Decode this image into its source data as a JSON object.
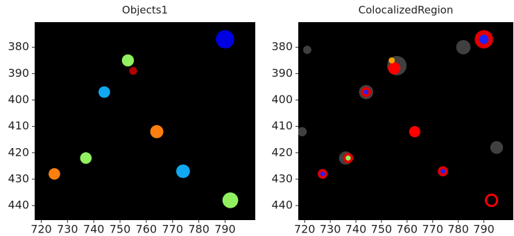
{
  "chart_data": [
    {
      "type": "image",
      "title": "Objects1",
      "background": "#000000",
      "xlim": [
        717.5,
        801.5
      ],
      "ylim": [
        445.5,
        370.5
      ],
      "xticks": [
        720,
        730,
        740,
        750,
        760,
        770,
        780,
        790
      ],
      "yticks": [
        380,
        390,
        400,
        410,
        420,
        430,
        440
      ],
      "objects": [
        {
          "x": 790,
          "y": 377,
          "r": 3.5,
          "fill": "#0000e0",
          "stroke": "none"
        },
        {
          "x": 753,
          "y": 385,
          "r": 2.3,
          "fill": "#90f060",
          "stroke": "none"
        },
        {
          "x": 755,
          "y": 389,
          "r": 1.5,
          "fill": "#b00000",
          "stroke": "none"
        },
        {
          "x": 744,
          "y": 397,
          "r": 2.2,
          "fill": "#10a8f0",
          "stroke": "none"
        },
        {
          "x": 764,
          "y": 412,
          "r": 2.5,
          "fill": "#ff7f0e",
          "stroke": "none"
        },
        {
          "x": 737,
          "y": 422,
          "r": 2.2,
          "fill": "#90f060",
          "stroke": "none"
        },
        {
          "x": 725,
          "y": 428,
          "r": 2.2,
          "fill": "#ff7f0e",
          "stroke": "none"
        },
        {
          "x": 774,
          "y": 427,
          "r": 2.6,
          "fill": "#10a8f0",
          "stroke": "none"
        },
        {
          "x": 792,
          "y": 438,
          "r": 3,
          "fill": "#90f060",
          "stroke": "none"
        }
      ]
    },
    {
      "type": "image",
      "title": "ColocalizedRegion",
      "background": "#000000",
      "xlim": [
        717.5,
        801.5
      ],
      "ylim": [
        445.5,
        370.5
      ],
      "xticks": [
        720,
        730,
        740,
        750,
        760,
        770,
        780,
        790
      ],
      "yticks": [
        380,
        390,
        400,
        410,
        420,
        430,
        440
      ],
      "objects": [
        {
          "x": 782,
          "y": 380,
          "r": 2.8,
          "fill": "#404040",
          "stroke": "none"
        },
        {
          "x": 721,
          "y": 381,
          "r": 1.6,
          "fill": "#404040",
          "stroke": "none"
        },
        {
          "x": 756,
          "y": 387,
          "r": 3.8,
          "fill": "#404040",
          "stroke": "none"
        },
        {
          "x": 744,
          "y": 397,
          "r": 2.8,
          "fill": "#404040",
          "stroke": "none"
        },
        {
          "x": 719,
          "y": 412,
          "r": 1.8,
          "fill": "#404040",
          "stroke": "none"
        },
        {
          "x": 795,
          "y": 418,
          "r": 2.5,
          "fill": "#404040",
          "stroke": "none"
        },
        {
          "x": 736,
          "y": 422,
          "r": 2.6,
          "fill": "#404040",
          "stroke": "none"
        },
        {
          "x": 790,
          "y": 377,
          "r": 3.6,
          "fill": "#e00000",
          "stroke": "none"
        },
        {
          "x": 790,
          "y": 377,
          "r": 1.8,
          "fill": "#2020ff",
          "stroke": "none"
        },
        {
          "x": 755,
          "y": 388,
          "r": 2.4,
          "fill": "#ff0000",
          "stroke": "none"
        },
        {
          "x": 754,
          "y": 385,
          "r": 1.2,
          "fill": "#ffa000",
          "stroke": "none"
        },
        {
          "x": 744,
          "y": 397,
          "r": 2,
          "fill": "#e00000",
          "stroke": "none"
        },
        {
          "x": 744,
          "y": 397,
          "r": 0.9,
          "fill": "#2020ff",
          "stroke": "none"
        },
        {
          "x": 763,
          "y": 412,
          "r": 2.2,
          "fill": "#ff0000",
          "stroke": "none"
        },
        {
          "x": 737,
          "y": 422,
          "r": 2,
          "fill": "#e00000",
          "stroke": "none"
        },
        {
          "x": 737,
          "y": 422,
          "r": 1,
          "fill": "#90f060",
          "stroke": "none"
        },
        {
          "x": 727,
          "y": 428,
          "r": 1.9,
          "fill": "#e00000",
          "stroke": "none"
        },
        {
          "x": 727,
          "y": 428,
          "r": 0.9,
          "fill": "#2020ff",
          "stroke": "none"
        },
        {
          "x": 774,
          "y": 427,
          "r": 2,
          "fill": "#e00000",
          "stroke": "none"
        },
        {
          "x": 774,
          "y": 427,
          "r": 0.9,
          "fill": "#2020ff",
          "stroke": "none"
        },
        {
          "x": 793,
          "y": 438,
          "r": 2.2,
          "fill": "none",
          "stroke": "#ff0000"
        }
      ]
    }
  ]
}
